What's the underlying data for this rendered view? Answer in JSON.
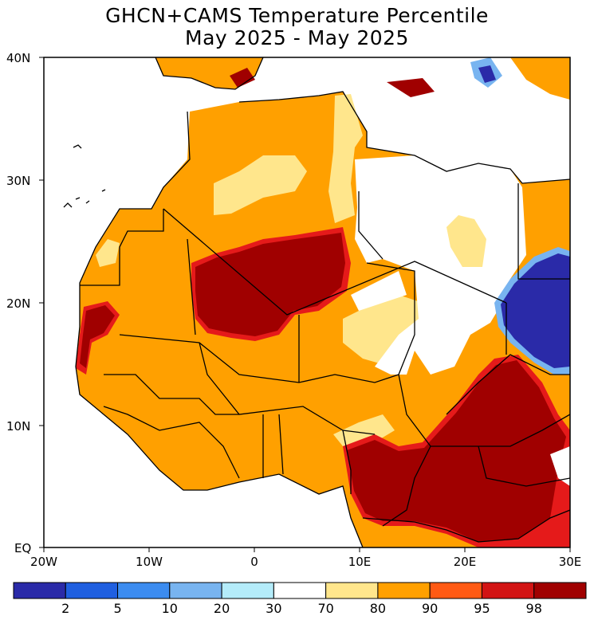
{
  "title": {
    "line1": "GHCN+CAMS Temperature Percentile",
    "line2": "May 2025 - May 2025"
  },
  "map": {
    "region": "North/West Africa",
    "lat_ticks": [
      "40N",
      "30N",
      "20N",
      "10N",
      "EQ"
    ],
    "lon_ticks": [
      "20W",
      "10W",
      "0",
      "10E",
      "20E",
      "30E"
    ]
  },
  "colorbar": {
    "bins": [
      {
        "color": "#2a2aa8"
      },
      {
        "color": "#1f5fe0"
      },
      {
        "color": "#3c8cf0"
      },
      {
        "color": "#78b4f0"
      },
      {
        "color": "#b4ecfa"
      },
      {
        "color": "#ffffff"
      },
      {
        "color": "#ffe68c"
      },
      {
        "color": "#ffa000"
      },
      {
        "color": "#ff5a14"
      },
      {
        "color": "#d21414"
      },
      {
        "color": "#a00000"
      }
    ],
    "labels": [
      "2",
      "5",
      "10",
      "20",
      "30",
      "70",
      "80",
      "90",
      "95",
      "98"
    ]
  },
  "colors": {
    "above_normal_orange": "#ffa000",
    "extreme_high_darkred": "#a00000",
    "high_red": "#e51a1a",
    "light_yellow": "#ffe68c",
    "normal_white": "#ffffff",
    "extreme_low_navy": "#2a2aa8"
  }
}
